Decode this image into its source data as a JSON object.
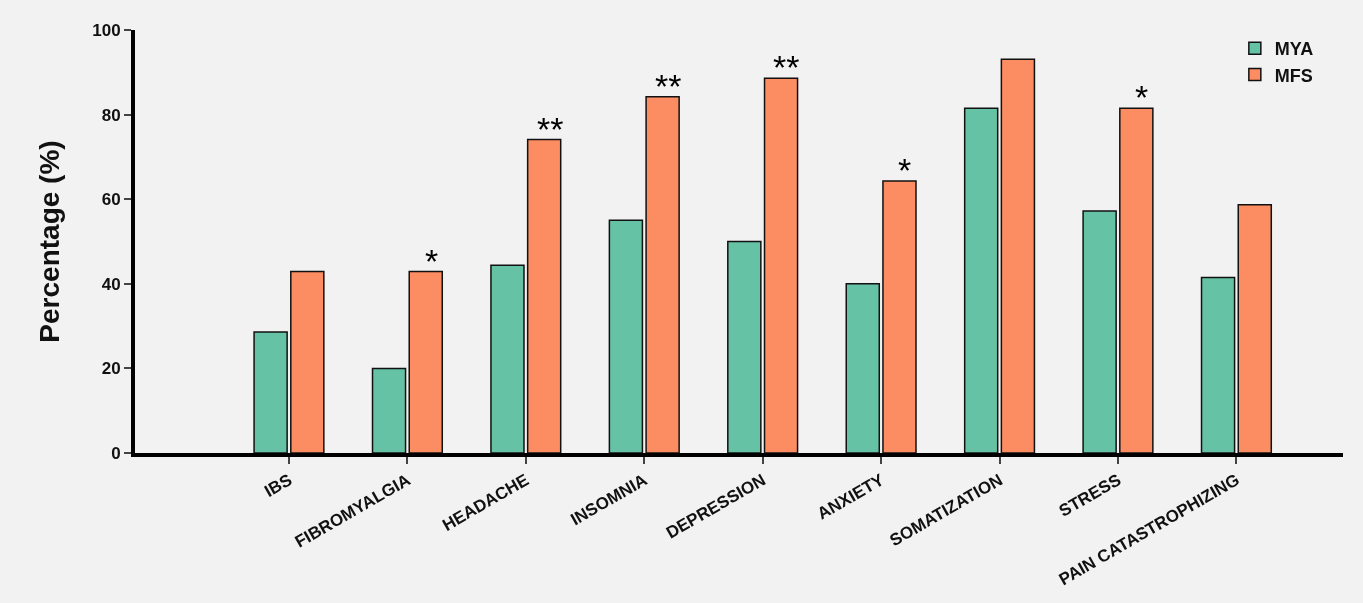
{
  "chart_data": {
    "type": "bar",
    "ylabel": "Percentage (%)",
    "categories": [
      "IBS",
      "FIBROMYALGIA",
      "HEADACHE",
      "INSOMNIA",
      "DEPRESSION",
      "ANXIETY",
      "SOMATIZATION",
      "STRESS",
      "PAIN CATASTROPHIZING"
    ],
    "series": [
      {
        "name": "MYA",
        "color": "#66c2a5",
        "values": [
          28.6,
          20,
          44.4,
          55,
          50,
          40,
          81.5,
          57.2,
          41.5
        ]
      },
      {
        "name": "MFS",
        "color": "#fc8d62",
        "values": [
          42.9,
          42.9,
          74.1,
          84.2,
          88.6,
          64.3,
          93.1,
          81.5,
          58.7
        ]
      }
    ],
    "ylim": [
      0,
      100
    ],
    "yticks": [
      0,
      20,
      40,
      60,
      80,
      100
    ],
    "grid": false,
    "legend": "top right",
    "annotations": [
      {
        "text": "*",
        "x": "FIBROMYALGIA",
        "y": 42.9
      },
      {
        "text": "**",
        "x": "HEADACHE",
        "y": 74.1
      },
      {
        "text": "**",
        "x": "INSOMNIA",
        "y": 84.2
      },
      {
        "text": "**",
        "x": "DEPRESSION",
        "y": 88.6
      },
      {
        "text": "*",
        "x": "ANXIETY",
        "y": 64.3
      },
      {
        "text": "*",
        "x": "STRESS",
        "y": 81.5
      }
    ]
  }
}
